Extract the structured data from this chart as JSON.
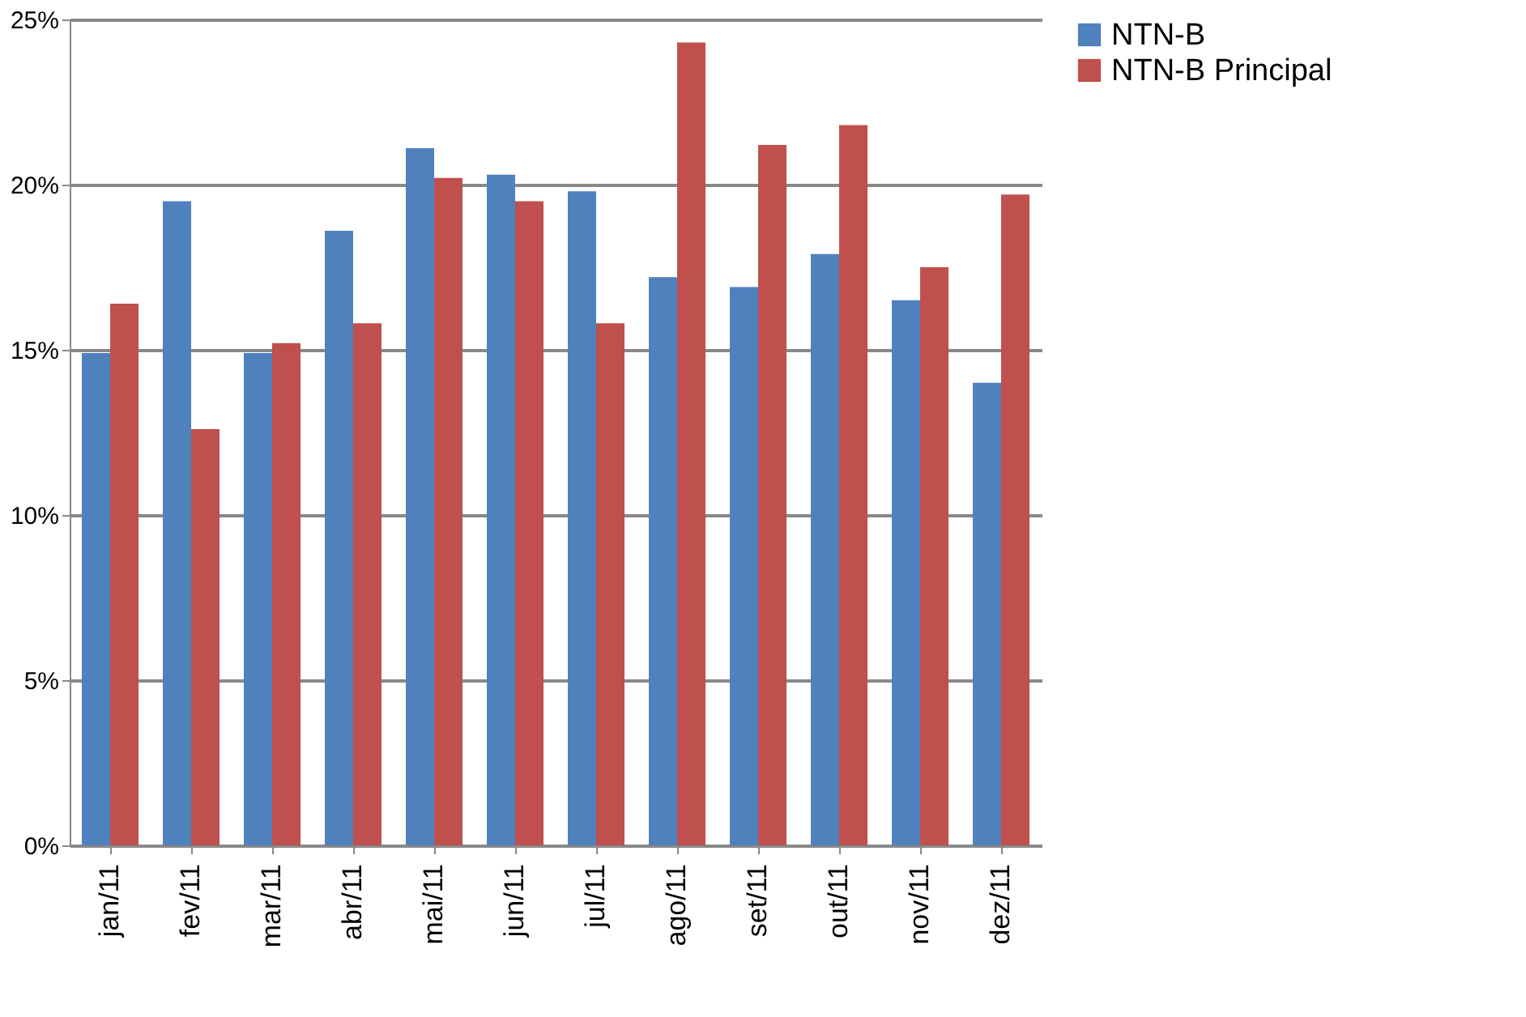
{
  "chart_data": {
    "type": "bar",
    "categories": [
      "jan/11",
      "fev/11",
      "mar/11",
      "abr/11",
      "mai/11",
      "jun/11",
      "jul/11",
      "ago/11",
      "set/11",
      "out/11",
      "nov/11",
      "dez/11"
    ],
    "series": [
      {
        "name": "NTN-B",
        "color": "#4f81bd",
        "values": [
          14.9,
          19.5,
          14.9,
          18.6,
          21.1,
          20.3,
          19.8,
          17.2,
          16.9,
          17.9,
          16.5,
          14.0
        ]
      },
      {
        "name": "NTN-B Principal",
        "color": "#c0504d",
        "values": [
          16.4,
          12.6,
          15.2,
          15.8,
          20.2,
          19.5,
          15.8,
          24.3,
          21.2,
          21.8,
          17.5,
          19.7
        ]
      }
    ],
    "ylim": [
      0,
      25
    ],
    "yticks": [
      {
        "value": 0,
        "label": "0%"
      },
      {
        "value": 5,
        "label": "5%"
      },
      {
        "value": 10,
        "label": "10%"
      },
      {
        "value": 15,
        "label": "15%"
      },
      {
        "value": 20,
        "label": "20%"
      },
      {
        "value": 25,
        "label": "25%"
      }
    ],
    "grid": "y",
    "legend": "right"
  }
}
